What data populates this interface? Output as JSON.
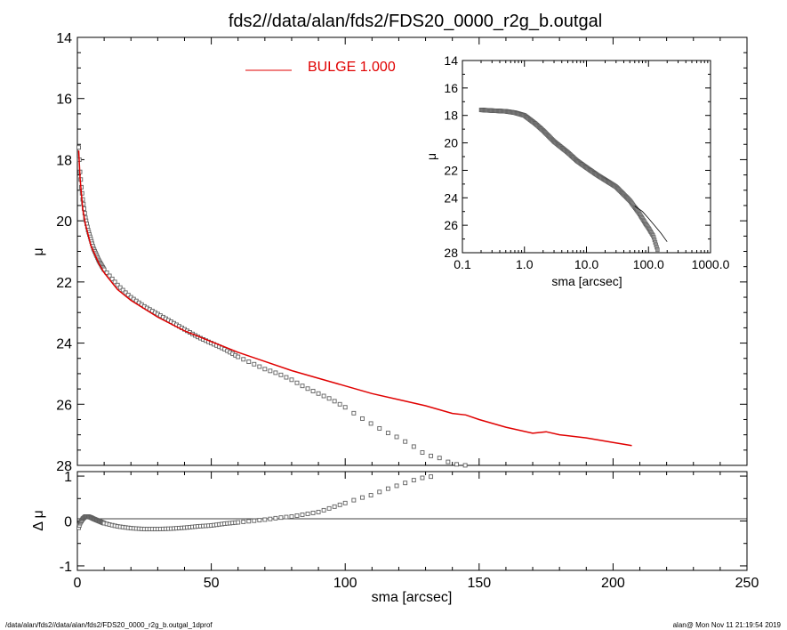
{
  "title": "fds2//data/alan/fds2/FDS20_0000_r2g_b.outgal",
  "footer_left": "/data/alan/fds2//data/alan/fds2/FDS20_0000_r2g_b.outgal_1dprof",
  "footer_right": "alan@  Mon Nov 11 21:19:54 2019",
  "colors": {
    "model": "#e00000",
    "data": "#606060",
    "axes": "#000000"
  },
  "chart_data": [
    {
      "name": "main-profile",
      "type": "scatter",
      "xlabel": "",
      "ylabel": "μ",
      "xlim": [
        0,
        250
      ],
      "ylim": [
        28,
        14
      ],
      "y_inverted": true,
      "y_ticks": [
        "14",
        "16",
        "18",
        "20",
        "22",
        "24",
        "26",
        "28"
      ],
      "legend": {
        "placement": "top-center",
        "label": "BULGE  1.000"
      },
      "data_points": {
        "x": [
          0.5,
          1,
          1.5,
          2,
          3,
          4,
          5,
          6,
          8,
          10,
          12,
          15,
          18,
          20,
          25,
          30,
          35,
          40,
          45,
          50,
          55,
          60,
          65,
          70,
          75,
          80,
          85,
          90,
          95,
          100,
          105,
          110,
          115,
          120,
          125,
          130,
          135,
          140,
          145
        ],
        "y": [
          17.6,
          18.4,
          18.9,
          19.3,
          19.9,
          20.3,
          20.6,
          20.9,
          21.3,
          21.6,
          21.8,
          22.1,
          22.35,
          22.5,
          22.8,
          23.05,
          23.3,
          23.55,
          23.8,
          24.0,
          24.2,
          24.45,
          24.65,
          24.85,
          25.0,
          25.2,
          25.45,
          25.65,
          25.85,
          26.1,
          26.4,
          26.65,
          26.9,
          27.1,
          27.35,
          27.65,
          27.75,
          27.95,
          28.0
        ]
      },
      "model_curve": {
        "name": "BULGE  1.000",
        "x": [
          0.5,
          1,
          2,
          3,
          5,
          8,
          10,
          15,
          20,
          30,
          40,
          50,
          60,
          70,
          80,
          90,
          100,
          110,
          120,
          130,
          140,
          145,
          150,
          160,
          170,
          175,
          180,
          190,
          200,
          207
        ],
        "y": [
          17.7,
          18.6,
          19.6,
          20.1,
          20.8,
          21.4,
          21.7,
          22.25,
          22.6,
          23.15,
          23.6,
          23.95,
          24.3,
          24.6,
          24.9,
          25.15,
          25.4,
          25.65,
          25.85,
          26.05,
          26.3,
          26.35,
          26.5,
          26.75,
          26.95,
          26.9,
          27.0,
          27.1,
          27.25,
          27.35
        ]
      }
    },
    {
      "name": "residuals",
      "type": "scatter",
      "xlabel": "sma [arcsec]",
      "ylabel": "Δ μ",
      "xlim": [
        0,
        250
      ],
      "ylim": [
        -1.1,
        1.1
      ],
      "x_ticks": [
        "0",
        "50",
        "100",
        "150",
        "200",
        "250"
      ],
      "y_ticks": [
        "1",
        "0",
        "-1"
      ],
      "zero_line": true,
      "data_points": {
        "x": [
          0.5,
          1,
          2,
          3,
          4,
          5,
          6,
          8,
          10,
          12,
          15,
          20,
          25,
          30,
          35,
          40,
          45,
          50,
          55,
          60,
          65,
          70,
          75,
          80,
          85,
          90,
          95,
          100,
          105,
          110,
          115,
          120,
          125,
          130,
          135
        ],
        "y": [
          -0.15,
          -0.05,
          0.05,
          0.1,
          0.1,
          0.08,
          0.05,
          0.0,
          -0.05,
          -0.08,
          -0.12,
          -0.16,
          -0.18,
          -0.18,
          -0.17,
          -0.15,
          -0.12,
          -0.1,
          -0.06,
          -0.03,
          0.0,
          0.03,
          0.07,
          0.1,
          0.15,
          0.2,
          0.3,
          0.4,
          0.5,
          0.58,
          0.7,
          0.8,
          0.9,
          0.98,
          1.0
        ]
      }
    },
    {
      "name": "inset-log-profile",
      "type": "line",
      "xlabel": "sma [arcsec]",
      "ylabel": "μ",
      "x_scale": "log",
      "xlim": [
        0.1,
        1000
      ],
      "ylim": [
        28,
        14
      ],
      "y_inverted": true,
      "x_ticks": [
        "0.1",
        "1.0",
        "10.0",
        "100.0",
        "1000.0"
      ],
      "y_ticks": [
        "14",
        "16",
        "18",
        "20",
        "22",
        "24",
        "26",
        "28"
      ],
      "data_points": {
        "x": [
          0.2,
          0.3,
          0.5,
          0.7,
          1,
          1.5,
          2,
          3,
          5,
          7,
          10,
          15,
          20,
          30,
          50,
          70,
          90,
          100,
          120,
          140
        ],
        "y": [
          17.6,
          17.65,
          17.7,
          17.8,
          18.0,
          18.6,
          19.1,
          19.9,
          20.7,
          21.3,
          21.8,
          22.35,
          22.7,
          23.2,
          24.2,
          25.1,
          25.9,
          26.2,
          26.8,
          27.8
        ]
      },
      "model_curve": {
        "x": [
          60,
          80,
          100,
          130,
          160,
          200
        ],
        "y": [
          24.6,
          25.0,
          25.5,
          26.1,
          26.6,
          27.2
        ]
      }
    }
  ]
}
